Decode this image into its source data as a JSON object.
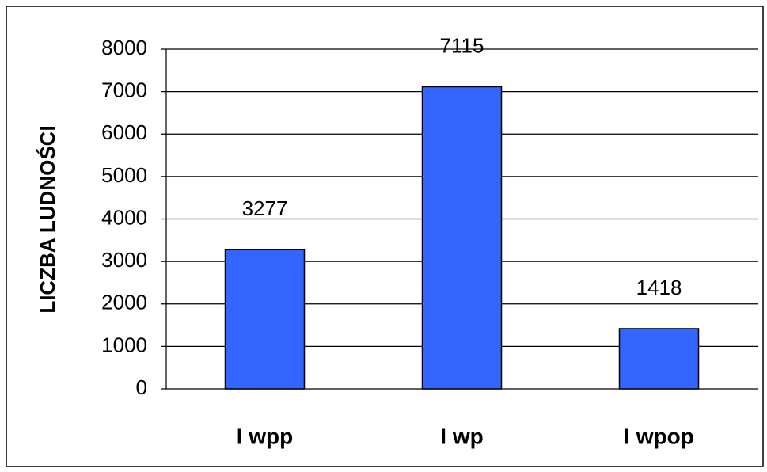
{
  "chart_data": {
    "type": "bar",
    "ylabel": "LICZBA LUDNOŚCI",
    "categories": [
      "I wpp",
      "I wp",
      "I wpop"
    ],
    "values": [
      3277,
      7115,
      1418
    ],
    "color": "#3366ff",
    "ylim": [
      0,
      8000
    ],
    "yticks": [
      0,
      1000,
      2000,
      3000,
      4000,
      5000,
      6000,
      7000,
      8000
    ],
    "grid": true
  }
}
